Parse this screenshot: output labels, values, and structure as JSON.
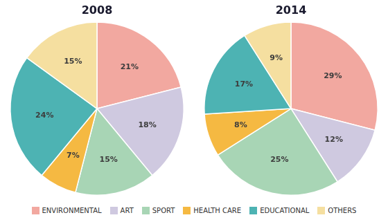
{
  "chart_data": [
    {
      "type": "pie",
      "title": "2008",
      "categories": [
        "ENVIRONMENTAL",
        "ART",
        "SPORT",
        "HEALTH CARE",
        "EDUCATIONAL",
        "OTHERS"
      ],
      "values": [
        21,
        18,
        15,
        7,
        24,
        15
      ],
      "value_labels": [
        "21%",
        "18%",
        "15%",
        "7%",
        "24%",
        "15%"
      ],
      "colors": [
        "#f2a8a0",
        "#cfc9e0",
        "#a8d5b5",
        "#f5b942",
        "#4db3b3",
        "#f5dfa0"
      ],
      "data_labels": true,
      "legend": "bottom"
    },
    {
      "type": "pie",
      "title": "2014",
      "categories": [
        "ENVIRONMENTAL",
        "ART",
        "SPORT",
        "HEALTH CARE",
        "EDUCATIONAL",
        "OTHERS"
      ],
      "values": [
        29,
        12,
        25,
        8,
        17,
        9
      ],
      "value_labels": [
        "29%",
        "12%",
        "25%",
        "8%",
        "17%",
        "9%"
      ],
      "colors": [
        "#f2a8a0",
        "#cfc9e0",
        "#a8d5b5",
        "#f5b942",
        "#4db3b3",
        "#f5dfa0"
      ],
      "data_labels": true,
      "legend": "bottom"
    }
  ]
}
